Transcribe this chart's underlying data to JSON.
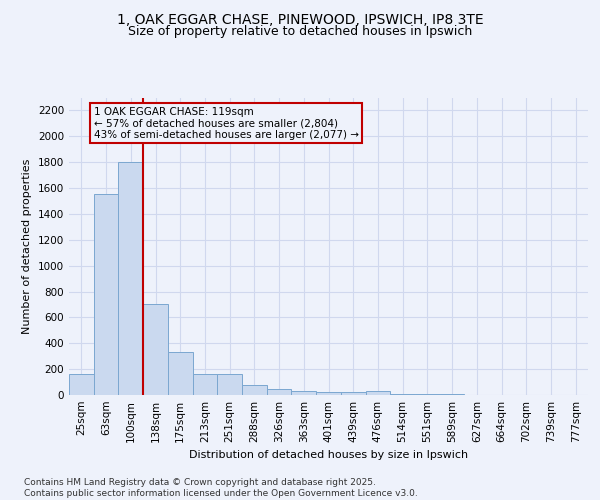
{
  "title_line1": "1, OAK EGGAR CHASE, PINEWOOD, IPSWICH, IP8 3TE",
  "title_line2": "Size of property relative to detached houses in Ipswich",
  "xlabel": "Distribution of detached houses by size in Ipswich",
  "ylabel": "Number of detached properties",
  "categories": [
    "25sqm",
    "63sqm",
    "100sqm",
    "138sqm",
    "175sqm",
    "213sqm",
    "251sqm",
    "288sqm",
    "326sqm",
    "363sqm",
    "401sqm",
    "439sqm",
    "476sqm",
    "514sqm",
    "551sqm",
    "589sqm",
    "627sqm",
    "664sqm",
    "702sqm",
    "739sqm",
    "777sqm"
  ],
  "values": [
    165,
    1555,
    1800,
    700,
    330,
    165,
    160,
    80,
    50,
    30,
    25,
    20,
    30,
    10,
    5,
    5,
    3,
    2,
    1,
    1,
    1
  ],
  "bar_color": "#cad9ef",
  "bar_edge_color": "#7ba7d0",
  "background_color": "#eef2fb",
  "grid_color": "#d0d8ee",
  "vline_x": 2.5,
  "vline_color": "#c00000",
  "annotation_text_line1": "1 OAK EGGAR CHASE: 119sqm",
  "annotation_text_line2": "← 57% of detached houses are smaller (2,804)",
  "annotation_text_line3": "43% of semi-detached houses are larger (2,077) →",
  "annotation_box_color": "#c00000",
  "footer_text": "Contains HM Land Registry data © Crown copyright and database right 2025.\nContains public sector information licensed under the Open Government Licence v3.0.",
  "ylim": [
    0,
    2300
  ],
  "yticks": [
    0,
    200,
    400,
    600,
    800,
    1000,
    1200,
    1400,
    1600,
    1800,
    2000,
    2200
  ],
  "title_fontsize": 10,
  "subtitle_fontsize": 9,
  "axis_label_fontsize": 8,
  "tick_fontsize": 7.5,
  "annotation_fontsize": 7.5,
  "footer_fontsize": 6.5
}
